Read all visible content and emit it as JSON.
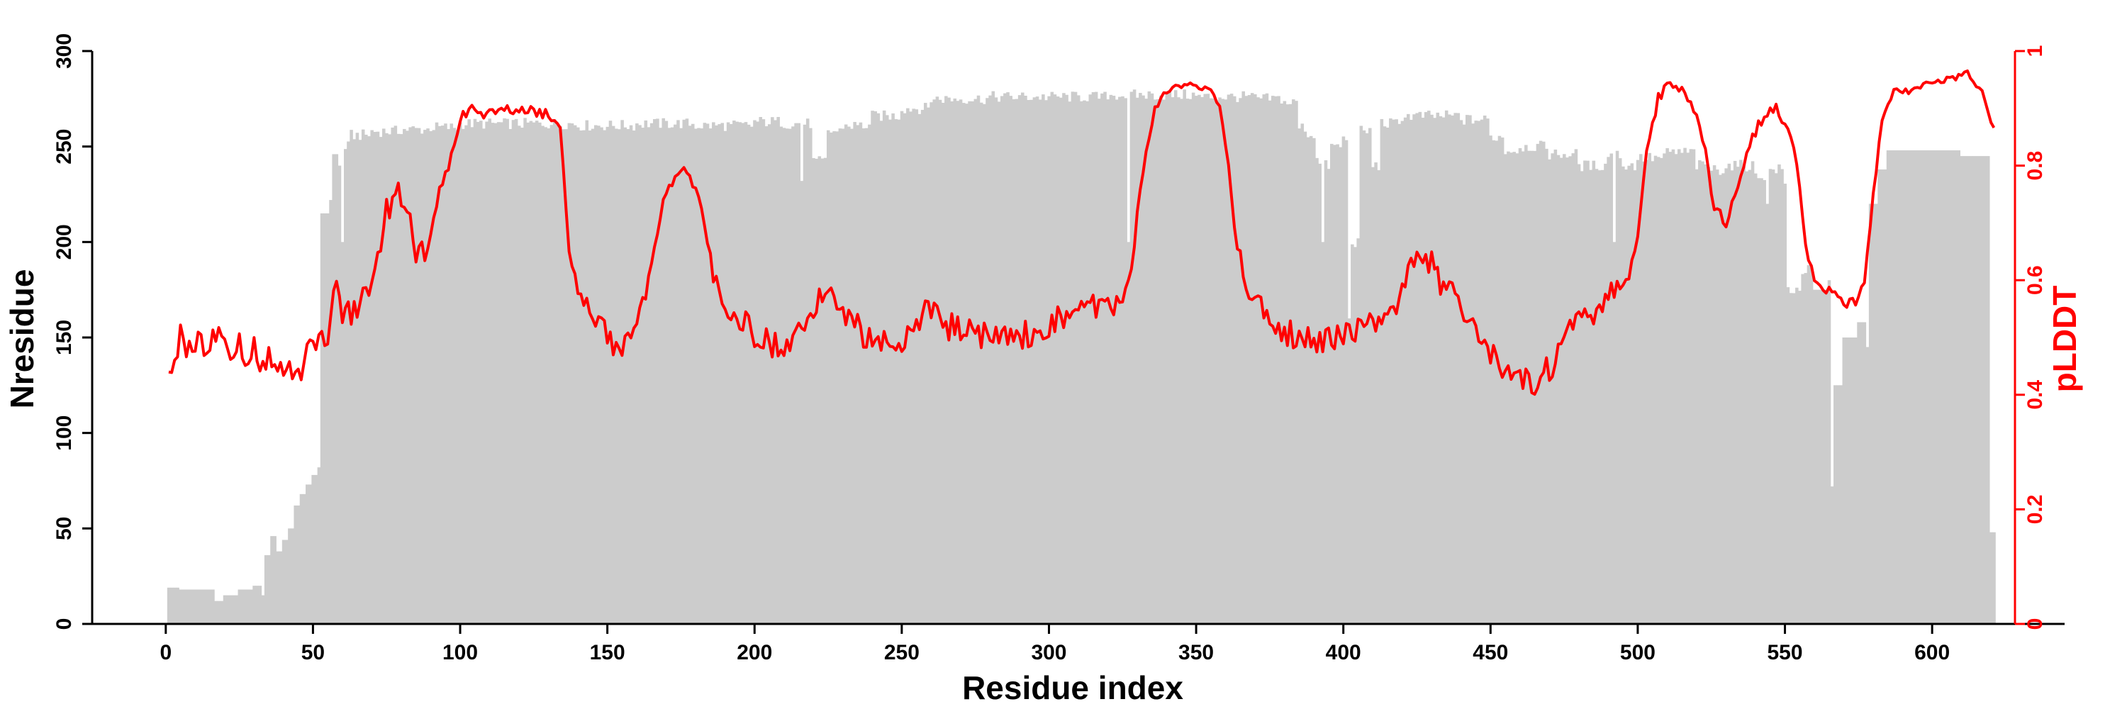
{
  "chart_data": {
    "type": "bar+line",
    "xlabel": "Residue index",
    "ylabel_left": "Nresidue",
    "ylabel_right": "pLDDT",
    "xlim": [
      -25,
      645
    ],
    "ylim_left": [
      0,
      300
    ],
    "ylim_right": [
      0,
      1
    ],
    "xticks": [
      0,
      50,
      100,
      150,
      200,
      250,
      300,
      350,
      400,
      450,
      500,
      550,
      600
    ],
    "yticks_left": [
      0,
      50,
      100,
      150,
      200,
      250,
      300
    ],
    "yticks_right": [
      "0",
      "0.2",
      "0.4",
      "0.6",
      "0.8",
      "1"
    ],
    "yticks_right_values": [
      0,
      0.2,
      0.4,
      0.6,
      0.8,
      1.0
    ],
    "colors": {
      "bars": "#cccccc",
      "line": "#ff0000",
      "axis": "#000000",
      "right_axis": "#ff0000"
    },
    "grid": false,
    "residue_count": 621,
    "series": [
      {
        "name": "Nresidue",
        "kind": "bar",
        "breakpoints": [
          [
            1,
            19
          ],
          [
            5,
            18
          ],
          [
            16,
            18
          ],
          [
            17,
            12
          ],
          [
            20,
            15
          ],
          [
            25,
            18
          ],
          [
            30,
            20
          ],
          [
            33,
            15
          ],
          [
            34,
            36
          ],
          [
            36,
            46
          ],
          [
            38,
            38
          ],
          [
            40,
            44
          ],
          [
            42,
            50
          ],
          [
            44,
            62
          ],
          [
            46,
            68
          ],
          [
            48,
            73
          ],
          [
            50,
            78
          ],
          [
            52,
            82
          ],
          [
            53,
            215
          ],
          [
            56,
            222
          ],
          [
            57,
            246
          ],
          [
            59,
            240
          ],
          [
            60,
            200
          ],
          [
            61,
            250
          ],
          [
            63,
            256
          ],
          [
            70,
            258
          ],
          [
            80,
            259
          ],
          [
            90,
            260
          ],
          [
            100,
            262
          ],
          [
            110,
            262
          ],
          [
            130,
            262
          ],
          [
            140,
            261
          ],
          [
            160,
            262
          ],
          [
            180,
            261
          ],
          [
            200,
            263
          ],
          [
            210,
            262
          ],
          [
            220,
            242
          ],
          [
            225,
            258
          ],
          [
            230,
            261
          ],
          [
            240,
            266
          ],
          [
            250,
            270
          ],
          [
            260,
            275
          ],
          [
            280,
            276
          ],
          [
            300,
            276
          ],
          [
            320,
            277
          ],
          [
            340,
            277
          ],
          [
            350,
            276
          ],
          [
            360,
            276
          ],
          [
            370,
            275
          ],
          [
            380,
            273
          ],
          [
            385,
            260
          ],
          [
            388,
            256
          ],
          [
            391,
            246
          ],
          [
            392,
            240
          ],
          [
            393,
            200
          ],
          [
            394,
            240
          ],
          [
            396,
            250
          ],
          [
            400,
            254
          ],
          [
            403,
            200
          ],
          [
            406,
            258
          ],
          [
            410,
            240
          ],
          [
            413,
            262
          ],
          [
            420,
            266
          ],
          [
            430,
            266
          ],
          [
            440,
            264
          ],
          [
            450,
            255
          ],
          [
            455,
            248
          ],
          [
            460,
            250
          ],
          [
            470,
            246
          ],
          [
            480,
            240
          ],
          [
            490,
            246
          ],
          [
            495,
            240
          ],
          [
            500,
            244
          ],
          [
            510,
            247
          ],
          [
            520,
            240
          ],
          [
            525,
            238
          ],
          [
            530,
            240
          ],
          [
            540,
            235
          ],
          [
            545,
            238
          ],
          [
            550,
            230
          ],
          [
            551,
            175
          ],
          [
            556,
            185
          ],
          [
            560,
            175
          ],
          [
            565,
            180
          ],
          [
            566,
            72
          ],
          [
            567,
            125
          ],
          [
            570,
            150
          ],
          [
            575,
            158
          ],
          [
            578,
            145
          ],
          [
            579,
            220
          ],
          [
            582,
            238
          ],
          [
            585,
            248
          ],
          [
            600,
            248
          ],
          [
            610,
            245
          ],
          [
            619,
            245
          ],
          [
            620,
            48
          ]
        ],
        "dips": [
          [
            216,
            232
          ],
          [
            327,
            200
          ],
          [
            393,
            200
          ],
          [
            402,
            160
          ],
          [
            492,
            200
          ],
          [
            544,
            220
          ]
        ]
      },
      {
        "name": "pLDDT",
        "kind": "line",
        "breakpoints": [
          [
            1,
            0.46
          ],
          [
            6,
            0.5
          ],
          [
            10,
            0.48
          ],
          [
            20,
            0.49
          ],
          [
            30,
            0.47
          ],
          [
            40,
            0.46
          ],
          [
            45,
            0.43
          ],
          [
            50,
            0.48
          ],
          [
            55,
            0.51
          ],
          [
            58,
            0.6
          ],
          [
            60,
            0.54
          ],
          [
            65,
            0.55
          ],
          [
            70,
            0.6
          ],
          [
            75,
            0.72
          ],
          [
            78,
            0.75
          ],
          [
            80,
            0.75
          ],
          [
            83,
            0.72
          ],
          [
            85,
            0.65
          ],
          [
            88,
            0.64
          ],
          [
            90,
            0.69
          ],
          [
            93,
            0.74
          ],
          [
            96,
            0.8
          ],
          [
            100,
            0.88
          ],
          [
            103,
            0.9
          ],
          [
            110,
            0.89
          ],
          [
            120,
            0.9
          ],
          [
            130,
            0.89
          ],
          [
            134,
            0.86
          ],
          [
            136,
            0.72
          ],
          [
            138,
            0.62
          ],
          [
            142,
            0.56
          ],
          [
            148,
            0.52
          ],
          [
            153,
            0.48
          ],
          [
            158,
            0.5
          ],
          [
            164,
            0.6
          ],
          [
            170,
            0.76
          ],
          [
            176,
            0.8
          ],
          [
            180,
            0.76
          ],
          [
            183,
            0.7
          ],
          [
            186,
            0.62
          ],
          [
            190,
            0.56
          ],
          [
            196,
            0.53
          ],
          [
            200,
            0.5
          ],
          [
            210,
            0.48
          ],
          [
            220,
            0.55
          ],
          [
            225,
            0.6
          ],
          [
            230,
            0.55
          ],
          [
            240,
            0.49
          ],
          [
            250,
            0.5
          ],
          [
            255,
            0.53
          ],
          [
            260,
            0.55
          ],
          [
            265,
            0.52
          ],
          [
            270,
            0.52
          ],
          [
            280,
            0.5
          ],
          [
            290,
            0.5
          ],
          [
            300,
            0.52
          ],
          [
            310,
            0.55
          ],
          [
            320,
            0.56
          ],
          [
            325,
            0.56
          ],
          [
            328,
            0.62
          ],
          [
            330,
            0.72
          ],
          [
            333,
            0.82
          ],
          [
            336,
            0.9
          ],
          [
            340,
            0.93
          ],
          [
            345,
            0.94
          ],
          [
            350,
            0.94
          ],
          [
            355,
            0.93
          ],
          [
            358,
            0.9
          ],
          [
            361,
            0.8
          ],
          [
            364,
            0.66
          ],
          [
            367,
            0.58
          ],
          [
            372,
            0.55
          ],
          [
            378,
            0.52
          ],
          [
            383,
            0.5
          ],
          [
            390,
            0.49
          ],
          [
            400,
            0.5
          ],
          [
            405,
            0.52
          ],
          [
            410,
            0.52
          ],
          [
            415,
            0.52
          ],
          [
            420,
            0.57
          ],
          [
            423,
            0.63
          ],
          [
            426,
            0.66
          ],
          [
            430,
            0.63
          ],
          [
            435,
            0.58
          ],
          [
            440,
            0.56
          ],
          [
            445,
            0.52
          ],
          [
            450,
            0.48
          ],
          [
            455,
            0.44
          ],
          [
            460,
            0.43
          ],
          [
            466,
            0.42
          ],
          [
            472,
            0.46
          ],
          [
            478,
            0.52
          ],
          [
            484,
            0.54
          ],
          [
            490,
            0.58
          ],
          [
            495,
            0.59
          ],
          [
            500,
            0.67
          ],
          [
            503,
            0.82
          ],
          [
            507,
            0.92
          ],
          [
            511,
            0.94
          ],
          [
            515,
            0.93
          ],
          [
            520,
            0.89
          ],
          [
            523,
            0.82
          ],
          [
            526,
            0.73
          ],
          [
            530,
            0.7
          ],
          [
            534,
            0.77
          ],
          [
            538,
            0.84
          ],
          [
            542,
            0.88
          ],
          [
            547,
            0.9
          ],
          [
            551,
            0.87
          ],
          [
            554,
            0.8
          ],
          [
            557,
            0.66
          ],
          [
            560,
            0.6
          ],
          [
            566,
            0.58
          ],
          [
            570,
            0.56
          ],
          [
            574,
            0.56
          ],
          [
            577,
            0.6
          ],
          [
            580,
            0.75
          ],
          [
            583,
            0.88
          ],
          [
            587,
            0.93
          ],
          [
            593,
            0.93
          ],
          [
            600,
            0.95
          ],
          [
            606,
            0.95
          ],
          [
            612,
            0.96
          ],
          [
            617,
            0.93
          ],
          [
            620,
            0.87
          ]
        ],
        "noise_amplitude": [
          [
            0,
            0.03
          ],
          [
            55,
            0.025
          ],
          [
            95,
            0.01
          ],
          [
            135,
            0.02
          ],
          [
            165,
            0.01
          ],
          [
            185,
            0.025
          ],
          [
            326,
            0.015
          ],
          [
            330,
            0.005
          ],
          [
            362,
            0.025
          ],
          [
            498,
            0.01
          ],
          [
            575,
            0.006
          ]
        ]
      }
    ]
  }
}
